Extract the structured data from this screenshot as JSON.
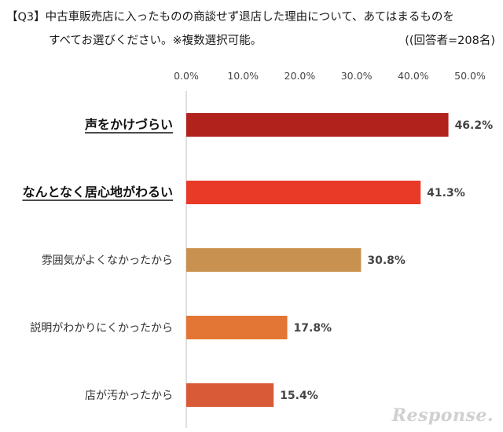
{
  "question_line1": "【Q3】中古車販売店に入ったものの商談せず退店した理由について、あてはまるものを",
  "question_line2": "すべてお選びください。※複数選択可能。",
  "respondents": "((回答者=208名)",
  "watermark": "Response.",
  "chart_data": {
    "type": "bar",
    "orientation": "horizontal",
    "categories": [
      "声をかけづらい",
      "なんとなく居心地がわるい",
      "雰囲気がよくなかったから",
      "説明がわかりにくかったから",
      "店が汚かったから"
    ],
    "values": [
      46.2,
      41.3,
      30.8,
      17.8,
      15.4
    ],
    "value_labels": [
      "46.2%",
      "41.3%",
      "30.8%",
      "17.8%",
      "15.4%"
    ],
    "highlighted": [
      true,
      true,
      false,
      false,
      false
    ],
    "colors": [
      "#B2221C",
      "#E83A26",
      "#C8914F",
      "#E37634",
      "#D95A37"
    ],
    "xlim": [
      0,
      50
    ],
    "xticks": [
      "0.0%",
      "10.0%",
      "20.0%",
      "30.0%",
      "40.0%",
      "50.0%"
    ],
    "grid": false,
    "legend": "none"
  }
}
